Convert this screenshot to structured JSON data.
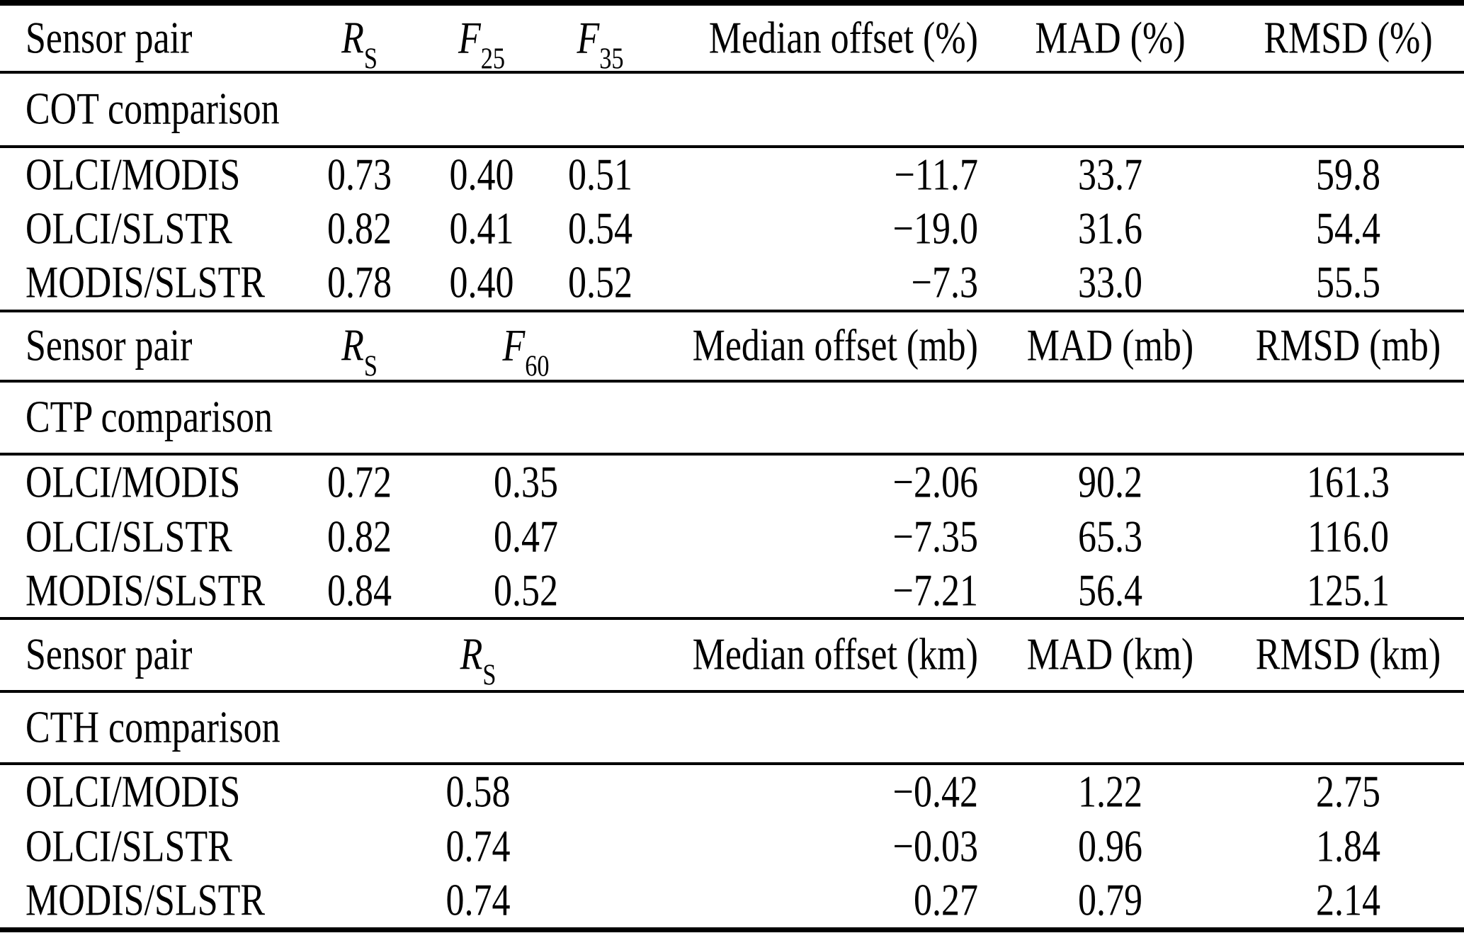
{
  "table": {
    "sections": [
      {
        "title": "COT comparison",
        "header": {
          "sensor_pair": "Sensor pair",
          "rs_base": "R",
          "rs_sub": "S",
          "f25_base": "F",
          "f25_sub": "25",
          "f35_base": "F",
          "f35_sub": "35",
          "median": "Median offset (%)",
          "mad": "MAD (%)",
          "rmsd": "RMSD (%)"
        },
        "rows": [
          {
            "pair": "OLCI/MODIS",
            "rs": "0.73",
            "f25": "0.40",
            "f35": "0.51",
            "median": "−11.7",
            "mad": "33.7",
            "rmsd": "59.8"
          },
          {
            "pair": "OLCI/SLSTR",
            "rs": "0.82",
            "f25": "0.41",
            "f35": "0.54",
            "median": "−19.0",
            "mad": "31.6",
            "rmsd": "54.4"
          },
          {
            "pair": "MODIS/SLSTR",
            "rs": "0.78",
            "f25": "0.40",
            "f35": "0.52",
            "median": "−7.3",
            "mad": "33.0",
            "rmsd": "55.5"
          }
        ]
      },
      {
        "title": "CTP comparison",
        "header": {
          "sensor_pair": "Sensor pair",
          "rs_base": "R",
          "rs_sub": "S",
          "f60_base": "F",
          "f60_sub": "60",
          "median": "Median offset (mb)",
          "mad": "MAD (mb)",
          "rmsd": "RMSD (mb)"
        },
        "rows": [
          {
            "pair": "OLCI/MODIS",
            "rs": "0.72",
            "f60": "0.35",
            "median": "−2.06",
            "mad": "90.2",
            "rmsd": "161.3"
          },
          {
            "pair": "OLCI/SLSTR",
            "rs": "0.82",
            "f60": "0.47",
            "median": "−7.35",
            "mad": "65.3",
            "rmsd": "116.0"
          },
          {
            "pair": "MODIS/SLSTR",
            "rs": "0.84",
            "f60": "0.52",
            "median": "−7.21",
            "mad": "56.4",
            "rmsd": "125.1"
          }
        ]
      },
      {
        "title": "CTH comparison",
        "header": {
          "sensor_pair": "Sensor pair",
          "rs_base": "R",
          "rs_sub": "S",
          "median": "Median offset (km)",
          "mad": "MAD (km)",
          "rmsd": "RMSD (km)"
        },
        "rows": [
          {
            "pair": "OLCI/MODIS",
            "rs": "0.58",
            "median": "−0.42",
            "mad": "1.22",
            "rmsd": "2.75"
          },
          {
            "pair": "OLCI/SLSTR",
            "rs": "0.74",
            "median": "−0.03",
            "mad": "0.96",
            "rmsd": "1.84"
          },
          {
            "pair": "MODIS/SLSTR",
            "rs": "0.74",
            "median": "0.27",
            "mad": "0.79",
            "rmsd": "2.14"
          }
        ]
      }
    ]
  }
}
